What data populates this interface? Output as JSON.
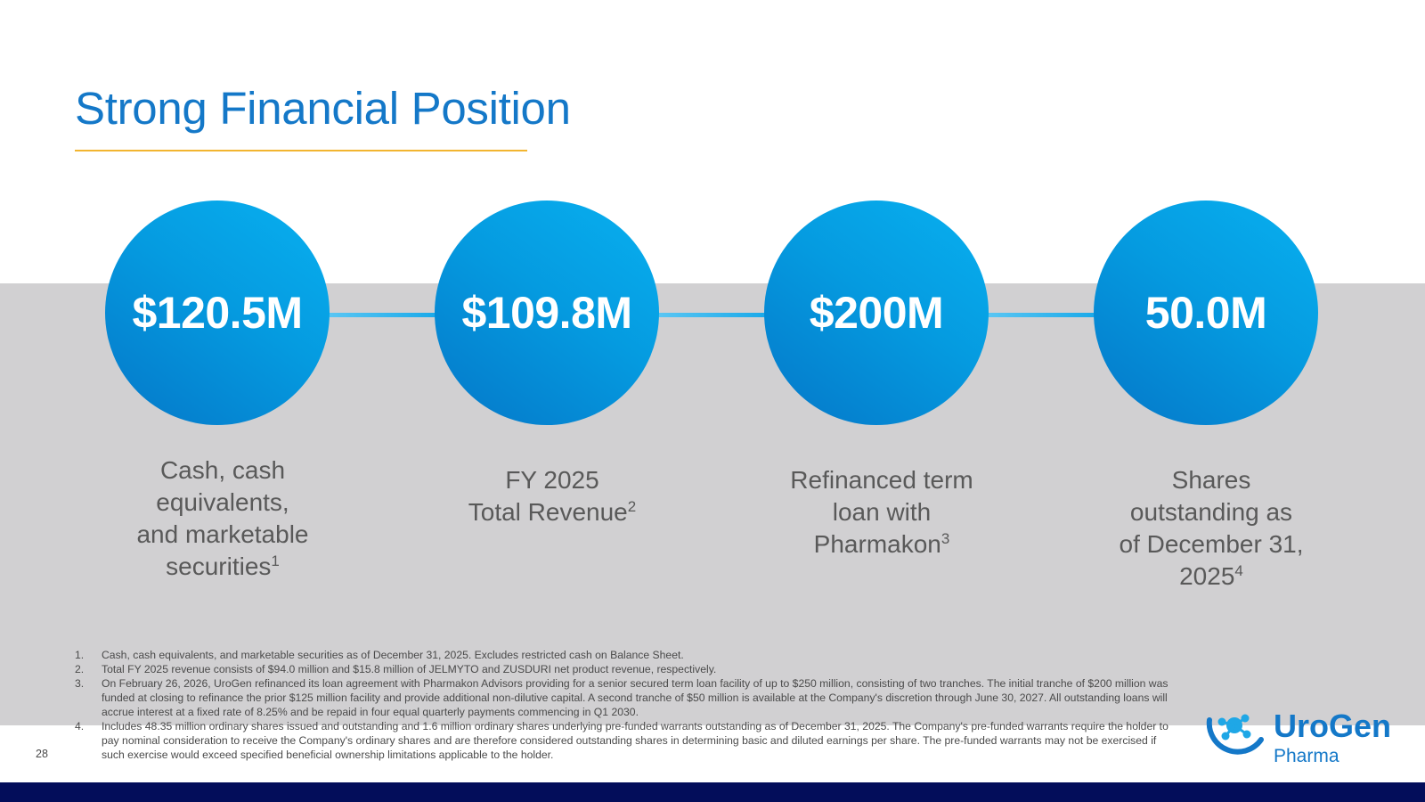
{
  "slide": {
    "title": "Strong Financial Position",
    "page_number": "28"
  },
  "metrics": [
    {
      "value": "$120.5M",
      "caption_lines": [
        "Cash, cash",
        "equivalents,",
        "and marketable",
        "securities"
      ],
      "footnote_ref": "1"
    },
    {
      "value": "$109.8M",
      "caption_lines": [
        "FY 2025",
        "Total Revenue"
      ],
      "footnote_ref": "2"
    },
    {
      "value": "$200M",
      "caption_lines": [
        "Refinanced term",
        "loan with",
        "Pharmakon"
      ],
      "footnote_ref": "3"
    },
    {
      "value": "50.0M",
      "caption_lines": [
        "Shares",
        "outstanding as",
        "of December 31,",
        "2025"
      ],
      "footnote_ref": "4"
    }
  ],
  "footnotes": [
    {
      "num": "1.",
      "text": "Cash, cash equivalents, and marketable securities as of December 31, 2025. Excludes restricted cash on Balance Sheet."
    },
    {
      "num": "2.",
      "text": "Total FY 2025 revenue consists of $94.0 million and $15.8 million of JELMYTO and ZUSDURI net product revenue, respectively."
    },
    {
      "num": "3.",
      "text": "On February 26, 2026, UroGen refinanced its loan agreement with Pharmakon Advisors providing for a senior secured term loan facility of up to $250 million, consisting of two tranches. The initial tranche of $200 million was funded at closing to refinance the prior $125 million facility and provide additional non-dilutive capital. A second tranche of $50 million is available at the Company's discretion through June 30, 2027. All outstanding loans will accrue interest at a fixed rate of 8.25% and be repaid in four equal quarterly payments commencing in Q1 2030."
    },
    {
      "num": "4.",
      "text": "Includes 48.35 million ordinary shares issued and outstanding and 1.6 million ordinary shares underlying pre-funded warrants outstanding as of December 31, 2025. The Company's pre-funded warrants require the holder to pay nominal consideration to receive the Company's ordinary shares and are therefore considered outstanding shares in determining basic and diluted earnings per share. The pre-funded warrants may not be exercised if such exercise would exceed specified beneficial ownership limitations applicable to the holder."
    }
  ],
  "logo": {
    "name": "UroGen",
    "subtitle": "Pharma"
  },
  "colors": {
    "title": "#1478c8",
    "underline": "#f2b530",
    "band": "#d1d0d2",
    "circle": "#059be0",
    "bottom_bar": "#030d5a"
  }
}
